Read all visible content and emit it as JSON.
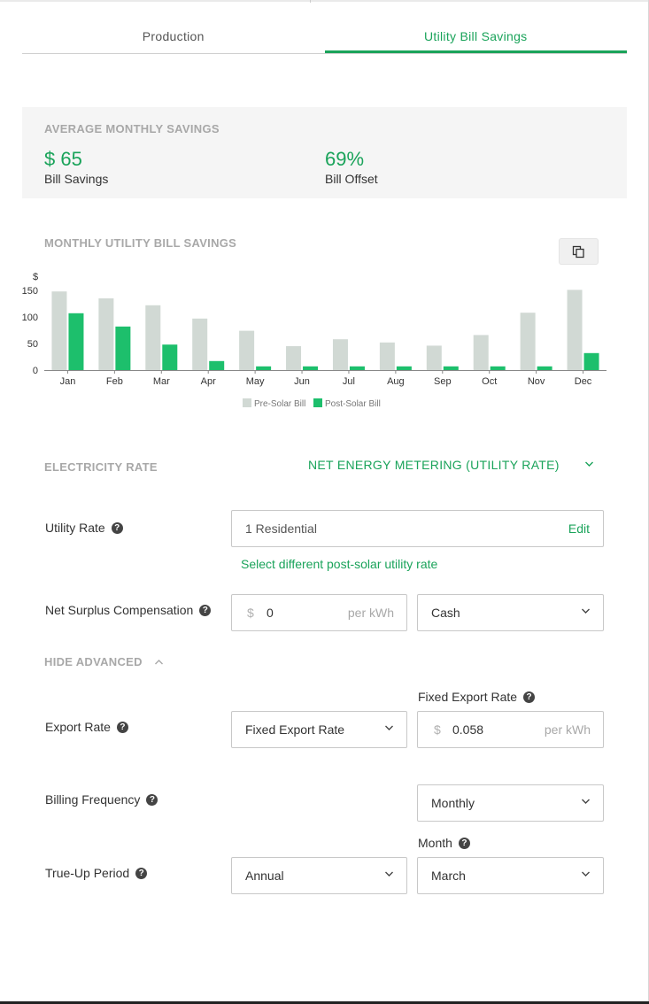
{
  "tabs": [
    {
      "label": "Production",
      "active": false
    },
    {
      "label": "Utility Bill Savings",
      "active": true
    }
  ],
  "summary": {
    "heading": "AVERAGE MONTHLY SAVINGS",
    "bill_savings_value": "$ 65",
    "bill_savings_label": "Bill Savings",
    "bill_offset_value": "69%",
    "bill_offset_label": "Bill Offset"
  },
  "chart_section": {
    "heading": "MONTHLY UTILITY BILL SAVINGS",
    "copy_icon": "copy-icon"
  },
  "chart_data": {
    "type": "bar",
    "ylabel": "$",
    "ylim": [
      0,
      150
    ],
    "yticks": [
      0,
      50,
      100,
      150
    ],
    "categories": [
      "Jan",
      "Feb",
      "Mar",
      "Apr",
      "May",
      "Jun",
      "Jul",
      "Aug",
      "Sep",
      "Oct",
      "Nov",
      "Dec"
    ],
    "series": [
      {
        "name": "Pre-Solar Bill",
        "color": "#d1d9d4",
        "values": [
          148,
          135,
          122,
          97,
          74,
          45,
          58,
          52,
          46,
          66,
          108,
          151
        ]
      },
      {
        "name": "Post-Solar Bill",
        "color": "#1dbf6c",
        "values": [
          107,
          82,
          48,
          17,
          7,
          7,
          7,
          7,
          7,
          7,
          7,
          32
        ]
      }
    ],
    "legend_position": "bottom-center",
    "grid": false
  },
  "electricity_rate": {
    "heading": "ELECTRICITY RATE",
    "mode": "NET ENERGY METERING (UTILITY RATE)"
  },
  "utility_rate": {
    "label": "Utility Rate",
    "value": "1 Residential",
    "edit_label": "Edit",
    "link": "Select different post-solar utility rate"
  },
  "net_surplus": {
    "label": "Net Surplus Compensation",
    "prefix": "$",
    "value": "0",
    "suffix": "per kWh",
    "type": "Cash"
  },
  "advanced_toggle": "HIDE ADVANCED",
  "export_rate": {
    "label": "Export Rate",
    "select": "Fixed Export Rate",
    "fixed_label": "Fixed Export Rate",
    "prefix": "$",
    "value": "0.058",
    "suffix": "per kWh"
  },
  "billing_frequency": {
    "label": "Billing Frequency",
    "value": "Monthly"
  },
  "true_up": {
    "label": "True-Up Period",
    "value": "Annual",
    "month_label": "Month",
    "month_value": "March"
  },
  "help_glyph": "?"
}
